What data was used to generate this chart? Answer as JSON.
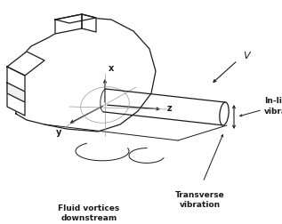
{
  "bg_color": "#ffffff",
  "line_color": "#1a1a1a",
  "label_inline": "In-line\nvibration",
  "label_transverse": "Transverse\nvibration",
  "label_fluid": "Fluid vortices\ndownstream",
  "label_v": "V",
  "label_x": "x",
  "label_y": "y",
  "label_z": "z",
  "figsize": [
    3.17,
    2.52
  ],
  "dpi": 100
}
